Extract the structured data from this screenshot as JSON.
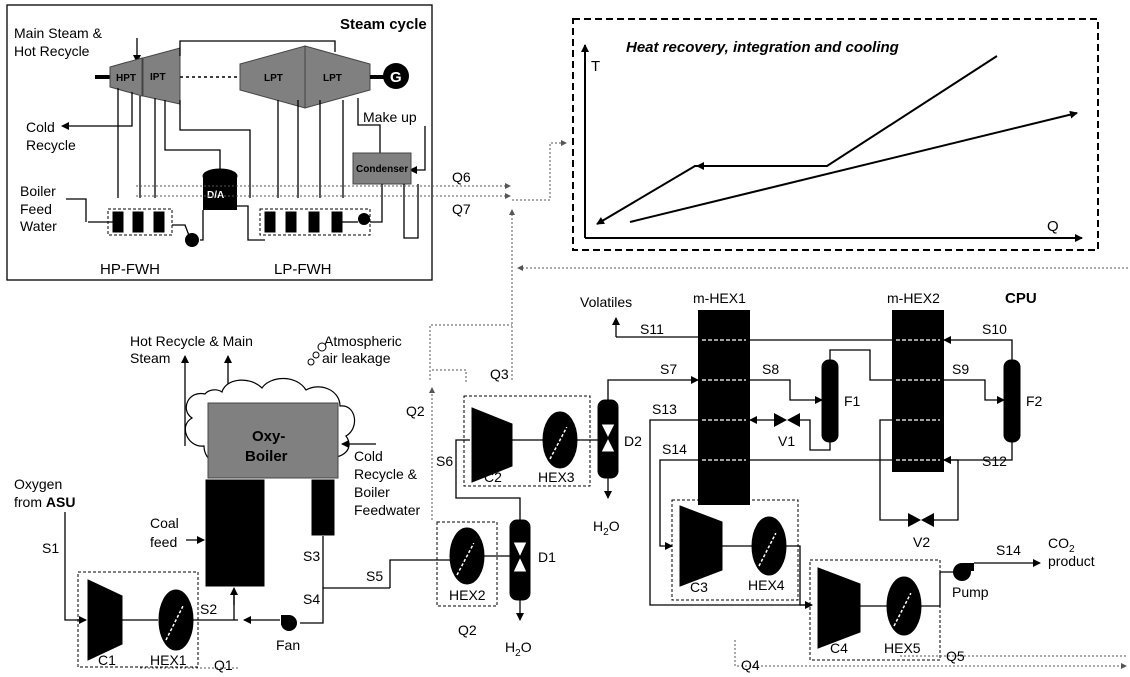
{
  "steam_cycle": {
    "title": "Steam cycle",
    "main_steam_line1": "Main Steam &",
    "main_steam_line2": "Hot Recycle",
    "hpt": "HPT",
    "ipt": "IPT",
    "lpt1": "LPT",
    "lpt2": "LPT",
    "generator": "G",
    "cold_recycle_line1": "Cold",
    "cold_recycle_line2": "Recycle",
    "make_up": "Make up",
    "condenser": "Condenser",
    "deaerator": "D/A",
    "bfw_line1": "Boiler",
    "bfw_line2": "Feed",
    "bfw_line3": "Water",
    "hp_fwh": "HP-FWH",
    "lp_fwh": "LP-FWH"
  },
  "heat_recovery": {
    "title": "Heat recovery, integration and cooling",
    "t_axis": "T",
    "q_axis": "Q"
  },
  "streams": {
    "q6": "Q6",
    "q7": "Q7",
    "q3": "Q3",
    "q2a": "Q2",
    "q2b": "Q2",
    "q1": "Q1",
    "q4": "Q4",
    "q5": "Q5",
    "s1": "S1",
    "s2": "S2",
    "s3": "S3",
    "s4": "S4",
    "s5": "S5",
    "s6": "S6",
    "s7": "S7",
    "s8": "S8",
    "s9": "S9",
    "s10": "S10",
    "s11": "S11",
    "s12": "S12",
    "s13": "S13",
    "s14a": "S14",
    "s14b": "S14"
  },
  "boiler": {
    "hot_recycle_line1": "Hot Recycle & Main",
    "hot_recycle_line2": "Steam",
    "atm_line1": "Atmospheric",
    "atm_line2": "air leakage",
    "oxy_line1": "Oxy-",
    "oxy_line2": "Boiler",
    "cold_line1": "Cold",
    "cold_line2": "Recycle &",
    "cold_line3": "Boiler",
    "cold_line4": "Feedwater",
    "oxygen_line1": "Oxygen",
    "oxygen_from": "from ",
    "oxygen_asu": "ASU",
    "coal_line1": "Coal",
    "coal_line2": "feed",
    "fan": "Fan"
  },
  "cpu": {
    "title": "CPU",
    "volatiles": "Volatiles",
    "mhex1": "m-HEX1",
    "mhex2": "m-HEX2",
    "f1": "F1",
    "f2": "F2",
    "v1": "V1",
    "v2": "V2",
    "d1": "D1",
    "d2": "D2",
    "h2o_a": "H",
    "h2o_b": "H",
    "h2o_sub": "2",
    "h2o_o": "O",
    "c1": "C1",
    "c2": "C2",
    "c3": "C3",
    "c4": "C4",
    "hex1": "HEX1",
    "hex2": "HEX2",
    "hex3": "HEX3",
    "hex4": "HEX4",
    "hex5": "HEX5",
    "pump": "Pump",
    "co2_line1": "CO",
    "co2_sub": "2",
    "co2_line2": "product"
  }
}
